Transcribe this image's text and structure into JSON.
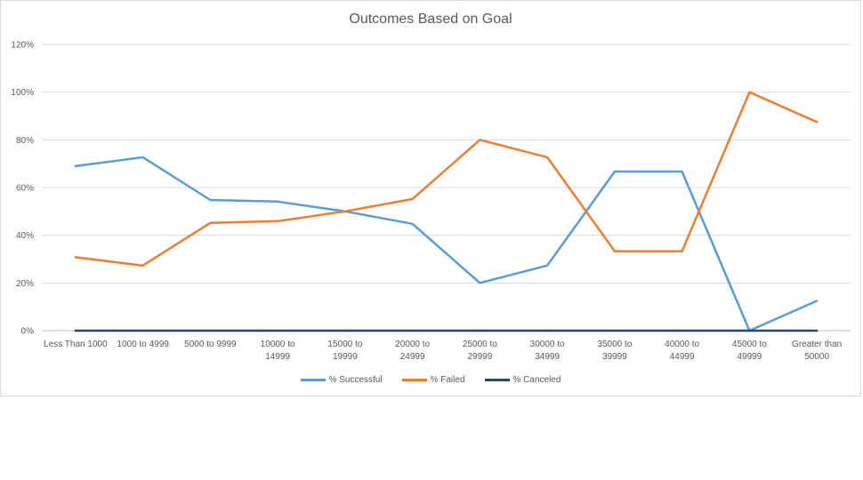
{
  "chart_data": {
    "type": "line",
    "title": "Outcomes Based on Goal",
    "xlabel": "",
    "ylabel": "",
    "ylim": [
      0,
      1.2
    ],
    "y_ticks": [
      "0%",
      "20%",
      "40%",
      "60%",
      "80%",
      "100%",
      "120%"
    ],
    "grid": true,
    "legend_position": "bottom",
    "categories": [
      [
        "Less Than 1000"
      ],
      [
        "1000 to 4999"
      ],
      [
        "5000 to 9999"
      ],
      [
        "10000 to",
        "14999"
      ],
      [
        "15000 to",
        "19999"
      ],
      [
        "20000 to",
        "24999"
      ],
      [
        "25000 to",
        "29999"
      ],
      [
        "30000 to",
        "34999"
      ],
      [
        "35000 to",
        "39999"
      ],
      [
        "40000 to",
        "44999"
      ],
      [
        "45000 to",
        "49999"
      ],
      [
        "Greater than",
        "50000"
      ]
    ],
    "series": [
      {
        "name": "% Successful",
        "color": "#5b9bd5",
        "values": [
          0.69,
          0.727,
          0.548,
          0.541,
          0.5,
          0.448,
          0.2,
          0.273,
          0.667,
          0.667,
          0.0,
          0.125
        ]
      },
      {
        "name": "% Failed",
        "color": "#ed7d31",
        "values": [
          0.308,
          0.273,
          0.452,
          0.459,
          0.5,
          0.552,
          0.8,
          0.727,
          0.333,
          0.333,
          1.0,
          0.875
        ]
      },
      {
        "name": "% Canceled",
        "color": "#264478",
        "values": [
          0,
          0,
          0,
          0,
          0,
          0,
          0,
          0,
          0,
          0,
          0,
          0
        ]
      }
    ]
  }
}
